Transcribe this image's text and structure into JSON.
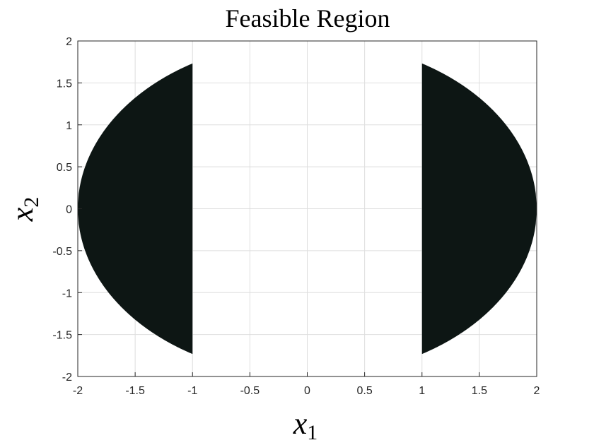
{
  "chart_data": {
    "type": "area",
    "title": "Feasible Region",
    "xlabel": {
      "base": "x",
      "sub": "1"
    },
    "ylabel": {
      "base": "x",
      "sub": "2"
    },
    "xlim": [
      -2,
      2
    ],
    "ylim": [
      -2,
      2
    ],
    "xticks": [
      -2,
      -1.5,
      -1,
      -0.5,
      0,
      0.5,
      1,
      1.5,
      2
    ],
    "yticks": [
      -2,
      -1.5,
      -1,
      -0.5,
      0,
      0.5,
      1,
      1.5,
      2
    ],
    "xtick_labels": [
      "-2",
      "-1.5",
      "-1",
      "-0.5",
      "0",
      "0.5",
      "1",
      "1.5",
      "2"
    ],
    "ytick_labels": [
      "-2",
      "-1.5",
      "-1",
      "-0.5",
      "0",
      "0.5",
      "1",
      "1.5",
      "2"
    ],
    "grid": true,
    "box": true,
    "regions": [
      {
        "name": "left",
        "x_range": [
          -2,
          -1
        ],
        "boundary": "x1^2 + x2^2 <= 4"
      },
      {
        "name": "right",
        "x_range": [
          1,
          2
        ],
        "boundary": "x1^2 + x2^2 <= 4"
      }
    ],
    "fill_color": "#0d1614",
    "grid_color": "#dedede",
    "axis_color": "#262626"
  }
}
